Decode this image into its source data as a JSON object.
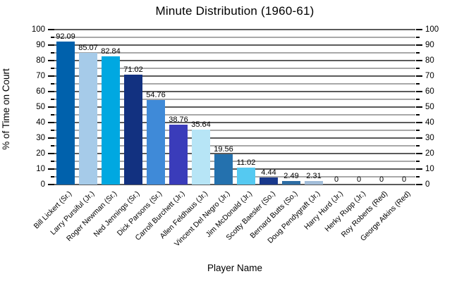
{
  "chart_data": {
    "type": "bar",
    "title": "Minute Distribution (1960-61)",
    "xlabel": "Player Name",
    "ylabel": "% of Time on Court",
    "ylim": [
      0,
      100
    ],
    "ytick_major_step": 10,
    "ytick_minor_step": 5,
    "grid": "on",
    "axes": "dual-y (same scale both sides), no vertical axis lines",
    "categories": [
      "Bill Lickert (Sr.)",
      "Larry Pursiful (Jr.)",
      "Roger Newman (Sr.)",
      "Ned Jennings (Sr.)",
      "Dick Parsons (Sr.)",
      "Carroll Burchett (Jr.)",
      "Allen Feldhaus (Jr.)",
      "Vincent Del Negro (Jr.)",
      "Jim McDonald (Jr.)",
      "Scotty Baesler (So.)",
      "Bernard Butts (So.)",
      "Doug Pendygraft (Jr.)",
      "Harry Hurd (Jr.)",
      "Herky Rupp (Jr.)",
      "Roy Roberts (Red)",
      "George Atkins (Red)"
    ],
    "values": [
      92.09,
      85.07,
      82.84,
      71.02,
      54.76,
      38.76,
      35.64,
      19.56,
      11.02,
      4.44,
      2.49,
      2.31,
      0,
      0,
      0,
      0
    ],
    "value_labels": [
      "92.09",
      "85.07",
      "82.84",
      "71.02",
      "54.76",
      "38.76",
      "35.64",
      "19.56",
      "11.02",
      "4.44",
      "2.49",
      "2.31",
      "0",
      "0",
      "0",
      "0"
    ],
    "bar_colors": [
      "#0061ac",
      "#a6cbe9",
      "#00a8e1",
      "#123180",
      "#3f8ad8",
      "#3a3cba",
      "#b7e5f6",
      "#2471ae",
      "#55c9f1",
      "#19398c",
      "#2e6da4",
      "#a2bdd9",
      "#0061ac",
      "#a6cbe9",
      "#00a8e1",
      "#123180"
    ],
    "grid_major_color": "#5b5b5b",
    "grid_minor_color": "#a8a8a8",
    "tick_color": "#000000",
    "background_color": "#ffffff"
  }
}
